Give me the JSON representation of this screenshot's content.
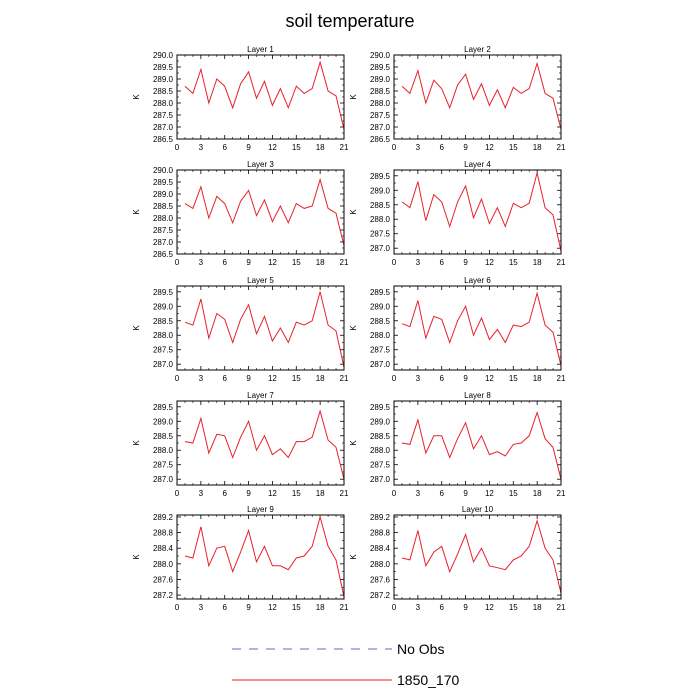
{
  "title": "soil temperature",
  "legend": [
    {
      "label": "No Obs",
      "color": "#6a6aa8",
      "style": "dashed"
    },
    {
      "label": "1850_170",
      "color": "#e8202a",
      "style": "solid"
    }
  ],
  "chart_data": [
    {
      "type": "line",
      "title": "Layer 1",
      "ylabel": "K",
      "x": [
        0,
        1,
        2,
        3,
        4,
        5,
        6,
        7,
        8,
        9,
        10,
        11,
        12,
        13,
        14,
        15,
        16,
        17,
        18,
        19,
        20,
        21
      ],
      "xticks": [
        0,
        3,
        6,
        9,
        12,
        15,
        18,
        21
      ],
      "xlim": [
        0,
        21
      ],
      "ylim": [
        286.5,
        290.0
      ],
      "yticks": [
        "286.5",
        "287.0",
        "287.5",
        "288.0",
        "288.5",
        "289.0",
        "289.5",
        "290.0"
      ],
      "series": [
        {
          "name": "1850_170",
          "color": "#e8202a",
          "values": [
            null,
            288.7,
            288.4,
            289.4,
            288.0,
            289.0,
            288.7,
            287.8,
            288.8,
            289.3,
            288.2,
            288.9,
            287.9,
            288.6,
            287.8,
            288.7,
            288.4,
            288.6,
            289.7,
            288.5,
            288.3,
            286.9
          ]
        }
      ]
    },
    {
      "type": "line",
      "title": "Layer 2",
      "ylabel": "K",
      "x": [
        0,
        1,
        2,
        3,
        4,
        5,
        6,
        7,
        8,
        9,
        10,
        11,
        12,
        13,
        14,
        15,
        16,
        17,
        18,
        19,
        20,
        21
      ],
      "xticks": [
        0,
        3,
        6,
        9,
        12,
        15,
        18,
        21
      ],
      "xlim": [
        0,
        21
      ],
      "ylim": [
        286.5,
        290.0
      ],
      "yticks": [
        "286.5",
        "287.0",
        "287.5",
        "288.0",
        "288.5",
        "289.0",
        "289.5",
        "290.0"
      ],
      "series": [
        {
          "name": "1850_170",
          "color": "#e8202a",
          "values": [
            null,
            288.7,
            288.4,
            289.35,
            288.0,
            288.95,
            288.6,
            287.8,
            288.75,
            289.2,
            288.15,
            288.8,
            287.9,
            288.55,
            287.8,
            288.65,
            288.4,
            288.6,
            289.65,
            288.4,
            288.2,
            286.9
          ]
        }
      ]
    },
    {
      "type": "line",
      "title": "Layer 3",
      "ylabel": "K",
      "x": [
        0,
        1,
        2,
        3,
        4,
        5,
        6,
        7,
        8,
        9,
        10,
        11,
        12,
        13,
        14,
        15,
        16,
        17,
        18,
        19,
        20,
        21
      ],
      "xticks": [
        0,
        3,
        6,
        9,
        12,
        15,
        18,
        21
      ],
      "xlim": [
        0,
        21
      ],
      "ylim": [
        286.5,
        290.0
      ],
      "yticks": [
        "286.5",
        "287.0",
        "287.5",
        "288.0",
        "288.5",
        "289.0",
        "289.5",
        "290.0"
      ],
      "series": [
        {
          "name": "1850_170",
          "color": "#e8202a",
          "values": [
            null,
            288.6,
            288.4,
            289.3,
            288.0,
            288.9,
            288.6,
            287.8,
            288.7,
            289.15,
            288.1,
            288.75,
            287.85,
            288.5,
            287.8,
            288.6,
            288.4,
            288.5,
            289.6,
            288.4,
            288.2,
            286.85
          ]
        }
      ]
    },
    {
      "type": "line",
      "title": "Layer 4",
      "ylabel": "K",
      "x": [
        0,
        1,
        2,
        3,
        4,
        5,
        6,
        7,
        8,
        9,
        10,
        11,
        12,
        13,
        14,
        15,
        16,
        17,
        18,
        19,
        20,
        21
      ],
      "xticks": [
        0,
        3,
        6,
        9,
        12,
        15,
        18,
        21
      ],
      "xlim": [
        0,
        21
      ],
      "ylim": [
        286.8,
        289.7
      ],
      "yticks": [
        "287.0",
        "287.5",
        "288.0",
        "288.5",
        "289.0",
        "289.5"
      ],
      "series": [
        {
          "name": "1850_170",
          "color": "#e8202a",
          "values": [
            null,
            288.6,
            288.4,
            289.3,
            287.95,
            288.85,
            288.6,
            287.75,
            288.6,
            289.15,
            288.05,
            288.7,
            287.85,
            288.4,
            287.75,
            288.55,
            288.4,
            288.55,
            289.6,
            288.4,
            288.15,
            286.9
          ]
        }
      ]
    },
    {
      "type": "line",
      "title": "Layer 5",
      "ylabel": "K",
      "x": [
        0,
        1,
        2,
        3,
        4,
        5,
        6,
        7,
        8,
        9,
        10,
        11,
        12,
        13,
        14,
        15,
        16,
        17,
        18,
        19,
        20,
        21
      ],
      "xticks": [
        0,
        3,
        6,
        9,
        12,
        15,
        18,
        21
      ],
      "xlim": [
        0,
        21
      ],
      "ylim": [
        286.8,
        289.7
      ],
      "yticks": [
        "287.0",
        "287.5",
        "288.0",
        "288.5",
        "289.0",
        "289.5"
      ],
      "series": [
        {
          "name": "1850_170",
          "color": "#e8202a",
          "values": [
            null,
            288.45,
            288.35,
            289.25,
            287.9,
            288.75,
            288.55,
            287.75,
            288.55,
            289.05,
            288.05,
            288.65,
            287.8,
            288.25,
            287.75,
            288.45,
            288.35,
            288.5,
            289.5,
            288.35,
            288.15,
            286.9
          ]
        }
      ]
    },
    {
      "type": "line",
      "title": "Layer 6",
      "ylabel": "K",
      "x": [
        0,
        1,
        2,
        3,
        4,
        5,
        6,
        7,
        8,
        9,
        10,
        11,
        12,
        13,
        14,
        15,
        16,
        17,
        18,
        19,
        20,
        21
      ],
      "xticks": [
        0,
        3,
        6,
        9,
        12,
        15,
        18,
        21
      ],
      "xlim": [
        0,
        21
      ],
      "ylim": [
        286.8,
        289.7
      ],
      "yticks": [
        "287.0",
        "287.5",
        "288.0",
        "288.5",
        "289.0",
        "289.5"
      ],
      "series": [
        {
          "name": "1850_170",
          "color": "#e8202a",
          "values": [
            null,
            288.4,
            288.3,
            289.2,
            287.9,
            288.65,
            288.55,
            287.75,
            288.5,
            289.0,
            288.0,
            288.6,
            287.85,
            288.2,
            287.75,
            288.35,
            288.3,
            288.45,
            289.45,
            288.35,
            288.1,
            286.95
          ]
        }
      ]
    },
    {
      "type": "line",
      "title": "Layer 7",
      "ylabel": "K",
      "x": [
        0,
        1,
        2,
        3,
        4,
        5,
        6,
        7,
        8,
        9,
        10,
        11,
        12,
        13,
        14,
        15,
        16,
        17,
        18,
        19,
        20,
        21
      ],
      "xticks": [
        0,
        3,
        6,
        9,
        12,
        15,
        18,
        21
      ],
      "xlim": [
        0,
        21
      ],
      "ylim": [
        286.8,
        289.7
      ],
      "yticks": [
        "287.0",
        "287.5",
        "288.0",
        "288.5",
        "289.0",
        "289.5"
      ],
      "series": [
        {
          "name": "1850_170",
          "color": "#e8202a",
          "values": [
            null,
            288.3,
            288.25,
            289.1,
            287.9,
            288.55,
            288.5,
            287.75,
            288.45,
            289.0,
            288.0,
            288.5,
            287.85,
            288.05,
            287.75,
            288.3,
            288.3,
            288.45,
            289.35,
            288.35,
            288.1,
            287.0
          ]
        }
      ]
    },
    {
      "type": "line",
      "title": "Layer 8",
      "ylabel": "K",
      "x": [
        0,
        1,
        2,
        3,
        4,
        5,
        6,
        7,
        8,
        9,
        10,
        11,
        12,
        13,
        14,
        15,
        16,
        17,
        18,
        19,
        20,
        21
      ],
      "xticks": [
        0,
        3,
        6,
        9,
        12,
        15,
        18,
        21
      ],
      "xlim": [
        0,
        21
      ],
      "ylim": [
        286.8,
        289.7
      ],
      "yticks": [
        "287.0",
        "287.5",
        "288.0",
        "288.5",
        "289.0",
        "289.5"
      ],
      "series": [
        {
          "name": "1850_170",
          "color": "#e8202a",
          "values": [
            null,
            288.25,
            288.2,
            289.05,
            287.9,
            288.5,
            288.5,
            287.75,
            288.4,
            288.95,
            288.05,
            288.5,
            287.85,
            287.95,
            287.8,
            288.2,
            288.25,
            288.5,
            289.3,
            288.4,
            288.1,
            287.0
          ]
        }
      ]
    },
    {
      "type": "line",
      "title": "Layer 9",
      "ylabel": "K",
      "x": [
        0,
        1,
        2,
        3,
        4,
        5,
        6,
        7,
        8,
        9,
        10,
        11,
        12,
        13,
        14,
        15,
        16,
        17,
        18,
        19,
        20,
        21
      ],
      "xticks": [
        0,
        3,
        6,
        9,
        12,
        15,
        18,
        21
      ],
      "xlim": [
        0,
        21
      ],
      "ylim": [
        287.1,
        289.25
      ],
      "yticks": [
        "287.2",
        "287.6",
        "288.0",
        "288.4",
        "288.8",
        "289.2"
      ],
      "series": [
        {
          "name": "1850_170",
          "color": "#e8202a",
          "values": [
            null,
            288.2,
            288.15,
            288.95,
            287.95,
            288.4,
            288.45,
            287.8,
            288.3,
            288.85,
            288.05,
            288.45,
            287.95,
            287.95,
            287.85,
            288.15,
            288.2,
            288.45,
            289.2,
            288.45,
            288.1,
            287.15
          ]
        }
      ]
    },
    {
      "type": "line",
      "title": "Layer 10",
      "ylabel": "K",
      "x": [
        0,
        1,
        2,
        3,
        4,
        5,
        6,
        7,
        8,
        9,
        10,
        11,
        12,
        13,
        14,
        15,
        16,
        17,
        18,
        19,
        20,
        21
      ],
      "xticks": [
        0,
        3,
        6,
        9,
        12,
        15,
        18,
        21
      ],
      "xlim": [
        0,
        21
      ],
      "ylim": [
        287.1,
        289.25
      ],
      "yticks": [
        "287.2",
        "287.6",
        "288.0",
        "288.4",
        "288.8",
        "289.2"
      ],
      "series": [
        {
          "name": "1850_170",
          "color": "#e8202a",
          "values": [
            null,
            288.15,
            288.1,
            288.85,
            287.95,
            288.3,
            288.45,
            287.8,
            288.25,
            288.75,
            288.05,
            288.4,
            287.95,
            287.9,
            287.85,
            288.1,
            288.2,
            288.45,
            289.1,
            288.4,
            288.1,
            287.25
          ]
        }
      ]
    }
  ]
}
